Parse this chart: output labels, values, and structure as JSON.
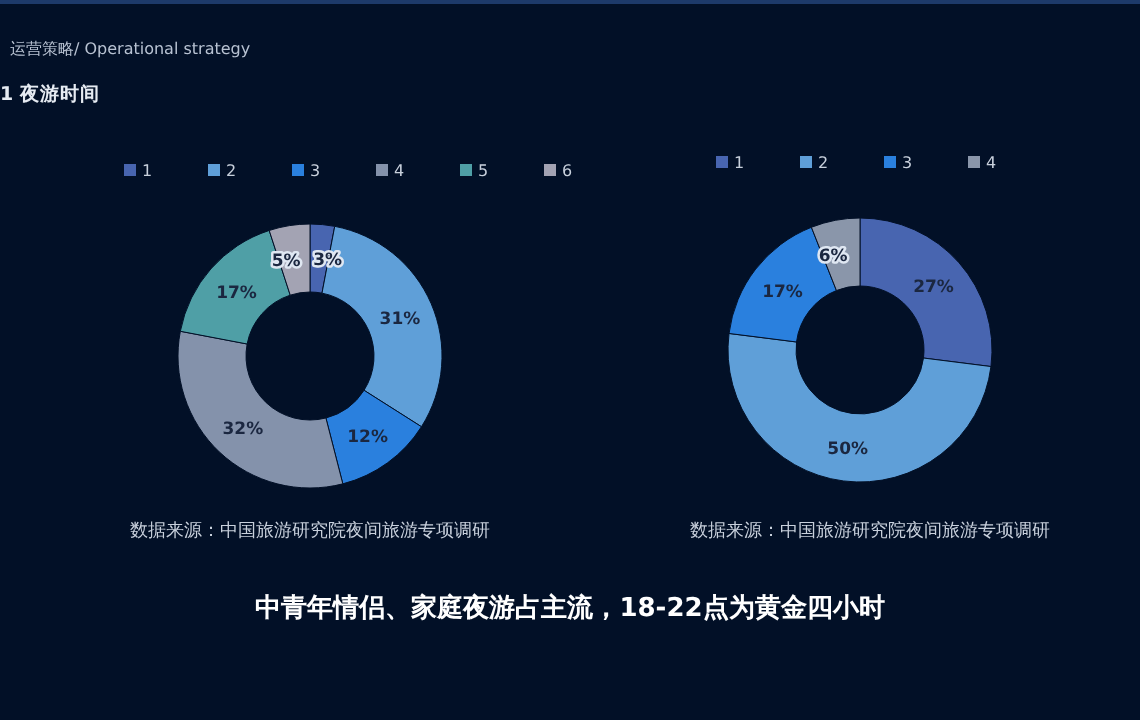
{
  "chart_data": [
    {
      "type": "donut",
      "categories": [
        "1",
        "2",
        "3",
        "4",
        "5",
        "6"
      ],
      "values": [
        3,
        31,
        12,
        32,
        17,
        5
      ],
      "colors": [
        "#4865b0",
        "#5f9fd8",
        "#2a80de",
        "#8492ab",
        "#4f9fa6",
        "#a3a3b3"
      ],
      "value_labels": [
        "3%",
        "31%",
        "12%",
        "32%",
        "17%",
        "5%"
      ],
      "legend": "top",
      "annotations": [
        "运营策略/ Operational strategy",
        "1  夜游时间",
        "数据来源：中国旅游研究院夜间旅游专项调研"
      ]
    },
    {
      "type": "donut",
      "categories": [
        "1",
        "2",
        "3",
        "4"
      ],
      "values": [
        27,
        50,
        17,
        6
      ],
      "colors": [
        "#4865b0",
        "#5f9fd8",
        "#2a80de",
        "#8a96aa"
      ],
      "value_labels": [
        "27%",
        "50%",
        "17%",
        "6%"
      ],
      "legend": "top",
      "annotations": [
        "数据来源：中国旅游研究院夜间旅游专项调研",
        "中青年情侣、家庭夜游占主流，18-22点为黄金四小时"
      ]
    }
  ]
}
